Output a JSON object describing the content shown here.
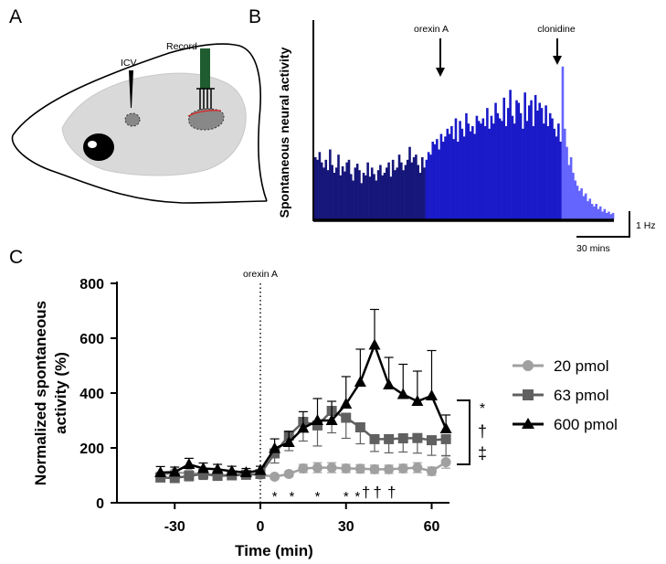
{
  "panels": {
    "a": "A",
    "b": "B",
    "c": "C"
  },
  "panel_a": {
    "icv_label": "ICV",
    "record_label": "Record"
  },
  "panel_b": {
    "ylabel": "Spontaneous neural activity",
    "event_1": "orexin A",
    "event_2": "clonidine",
    "scale_y": "1 Hz",
    "scale_x": "30 mins",
    "colors": {
      "baseline": "#16167a",
      "orexin": "#1a1ac8",
      "clonidine": "#6464ff"
    },
    "trace_rates": [
      0.48,
      0.46,
      0.52,
      0.44,
      0.4,
      0.46,
      0.38,
      0.54,
      0.42,
      0.36,
      0.4,
      0.5,
      0.34,
      0.41,
      0.37,
      0.44,
      0.46,
      0.35,
      0.3,
      0.4,
      0.43,
      0.38,
      0.28,
      0.36,
      0.34,
      0.44,
      0.33,
      0.4,
      0.35,
      0.3,
      0.38,
      0.42,
      0.34,
      0.36,
      0.4,
      0.44,
      0.33,
      0.46,
      0.38,
      0.4,
      0.5,
      0.44,
      0.38,
      0.42,
      0.46,
      0.56,
      0.44,
      0.48,
      0.5,
      0.42,
      0.36,
      0.48,
      0.4,
      0.46,
      0.52,
      0.5,
      0.6,
      0.58,
      0.62,
      0.54,
      0.66,
      0.6,
      0.64,
      0.7,
      0.66,
      0.72,
      0.62,
      0.78,
      0.6,
      0.76,
      0.7,
      0.64,
      0.82,
      0.74,
      0.68,
      0.72,
      0.66,
      0.8,
      0.76,
      0.74,
      0.78,
      0.72,
      0.86,
      0.7,
      0.8,
      0.74,
      0.9,
      0.82,
      0.78,
      0.76,
      0.94,
      0.72,
      0.86,
      1.0,
      0.8,
      0.74,
      0.92,
      0.9,
      0.82,
      0.7,
      0.98,
      0.76,
      0.88,
      0.92,
      0.72,
      0.96,
      0.84,
      0.9,
      0.86,
      0.74,
      0.88,
      0.72,
      0.82,
      0.78,
      0.7,
      0.64,
      0.74,
      0.6,
      1.18,
      0.7,
      0.56,
      0.42,
      0.48,
      0.36,
      0.3,
      0.26,
      0.22,
      0.24,
      0.18,
      0.2,
      0.14,
      0.16,
      0.12,
      0.1,
      0.12,
      0.08,
      0.1,
      0.06,
      0.08,
      0.05,
      0.06,
      0.04,
      0.05
    ],
    "orexin_index": 53,
    "clonidine_index": 118
  },
  "chart_data": {
    "type": "line",
    "x": [
      -35,
      -30,
      -25,
      -20,
      -15,
      -10,
      -5,
      0,
      5,
      10,
      15,
      20,
      25,
      30,
      35,
      40,
      45,
      50,
      55,
      60,
      65
    ],
    "xlabel": "Time (min)",
    "ylabel": "Normalized spontaneous activity (%)",
    "xlim": [
      -40,
      67
    ],
    "ylim": [
      0,
      800
    ],
    "xticks": [
      -30,
      0,
      30,
      60
    ],
    "yticks": [
      0,
      200,
      400,
      600,
      800
    ],
    "annotation_line": {
      "x": 0,
      "label": "orexin A"
    },
    "series": [
      {
        "name": "20 pmol",
        "color": "#a0a0a0",
        "marker": "circle",
        "values": [
          100,
          110,
          108,
          105,
          100,
          102,
          104,
          102,
          95,
          105,
          125,
          128,
          128,
          125,
          124,
          122,
          122,
          125,
          128,
          115,
          148
        ],
        "errors": [
          12,
          10,
          10,
          10,
          10,
          10,
          10,
          10,
          8,
          10,
          15,
          18,
          18,
          15,
          15,
          15,
          15,
          15,
          18,
          15,
          22
        ]
      },
      {
        "name": "63 pmol",
        "color": "#606060",
        "marker": "square",
        "values": [
          92,
          90,
          98,
          105,
          98,
          100,
          102,
          105,
          180,
          245,
          295,
          282,
          335,
          310,
          275,
          232,
          232,
          235,
          236,
          228,
          232
        ],
        "errors": [
          15,
          15,
          18,
          20,
          15,
          15,
          15,
          15,
          35,
          55,
          70,
          75,
          80,
          75,
          60,
          45,
          50,
          50,
          55,
          55,
          60
        ],
        "direction": "down"
      },
      {
        "name": "600 pmol",
        "color": "#000000",
        "marker": "triangle",
        "values": [
          110,
          112,
          140,
          125,
          122,
          115,
          110,
          118,
          198,
          220,
          272,
          300,
          300,
          360,
          440,
          575,
          430,
          395,
          370,
          390,
          270
        ],
        "errors": [
          22,
          18,
          22,
          20,
          18,
          18,
          15,
          15,
          35,
          40,
          60,
          80,
          70,
          100,
          120,
          130,
          100,
          110,
          110,
          165,
          50
        ],
        "direction": "up"
      }
    ],
    "sig_marks": [
      {
        "x": 5,
        "text": "*"
      },
      {
        "x": 11,
        "text": "*"
      },
      {
        "x": 20,
        "text": "*"
      },
      {
        "x": 30,
        "text": "*"
      },
      {
        "x": 34,
        "text": "*"
      },
      {
        "x": 37,
        "text": "†"
      },
      {
        "x": 41,
        "text": "†"
      },
      {
        "x": 46,
        "text": "†"
      }
    ],
    "bracket_symbols": [
      "*",
      "†",
      "‡"
    ],
    "legend_position": "right"
  }
}
